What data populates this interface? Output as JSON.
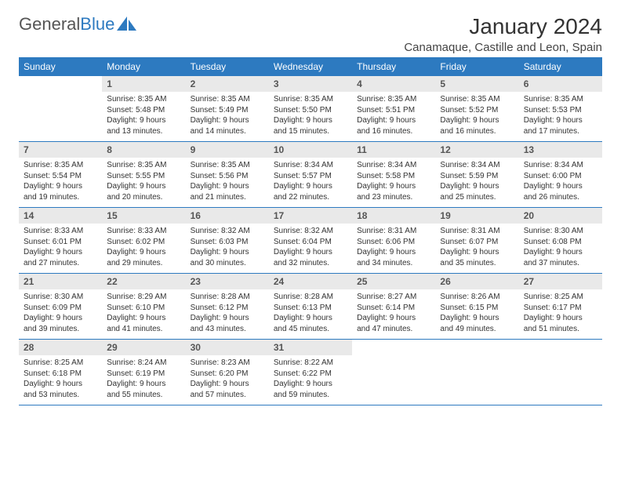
{
  "logo": {
    "part1": "General",
    "part2": "Blue"
  },
  "title": "January 2024",
  "location": "Canamaque, Castille and Leon, Spain",
  "colors": {
    "header_bg": "#2d7ac0",
    "header_text": "#ffffff",
    "daynum_bg": "#e9e9e9",
    "page_bg": "#ffffff",
    "text": "#333333",
    "border": "#2d7ac0"
  },
  "typography": {
    "title_fontsize": 28,
    "location_fontsize": 15,
    "weekday_fontsize": 12,
    "daynum_fontsize": 12,
    "cell_fontsize": 10
  },
  "weekdays": [
    "Sunday",
    "Monday",
    "Tuesday",
    "Wednesday",
    "Thursday",
    "Friday",
    "Saturday"
  ],
  "start_offset": 1,
  "days": [
    {
      "n": "1",
      "sunrise": "8:35 AM",
      "sunset": "5:48 PM",
      "daylight": "9 hours and 13 minutes."
    },
    {
      "n": "2",
      "sunrise": "8:35 AM",
      "sunset": "5:49 PM",
      "daylight": "9 hours and 14 minutes."
    },
    {
      "n": "3",
      "sunrise": "8:35 AM",
      "sunset": "5:50 PM",
      "daylight": "9 hours and 15 minutes."
    },
    {
      "n": "4",
      "sunrise": "8:35 AM",
      "sunset": "5:51 PM",
      "daylight": "9 hours and 16 minutes."
    },
    {
      "n": "5",
      "sunrise": "8:35 AM",
      "sunset": "5:52 PM",
      "daylight": "9 hours and 16 minutes."
    },
    {
      "n": "6",
      "sunrise": "8:35 AM",
      "sunset": "5:53 PM",
      "daylight": "9 hours and 17 minutes."
    },
    {
      "n": "7",
      "sunrise": "8:35 AM",
      "sunset": "5:54 PM",
      "daylight": "9 hours and 19 minutes."
    },
    {
      "n": "8",
      "sunrise": "8:35 AM",
      "sunset": "5:55 PM",
      "daylight": "9 hours and 20 minutes."
    },
    {
      "n": "9",
      "sunrise": "8:35 AM",
      "sunset": "5:56 PM",
      "daylight": "9 hours and 21 minutes."
    },
    {
      "n": "10",
      "sunrise": "8:34 AM",
      "sunset": "5:57 PM",
      "daylight": "9 hours and 22 minutes."
    },
    {
      "n": "11",
      "sunrise": "8:34 AM",
      "sunset": "5:58 PM",
      "daylight": "9 hours and 23 minutes."
    },
    {
      "n": "12",
      "sunrise": "8:34 AM",
      "sunset": "5:59 PM",
      "daylight": "9 hours and 25 minutes."
    },
    {
      "n": "13",
      "sunrise": "8:34 AM",
      "sunset": "6:00 PM",
      "daylight": "9 hours and 26 minutes."
    },
    {
      "n": "14",
      "sunrise": "8:33 AM",
      "sunset": "6:01 PM",
      "daylight": "9 hours and 27 minutes."
    },
    {
      "n": "15",
      "sunrise": "8:33 AM",
      "sunset": "6:02 PM",
      "daylight": "9 hours and 29 minutes."
    },
    {
      "n": "16",
      "sunrise": "8:32 AM",
      "sunset": "6:03 PM",
      "daylight": "9 hours and 30 minutes."
    },
    {
      "n": "17",
      "sunrise": "8:32 AM",
      "sunset": "6:04 PM",
      "daylight": "9 hours and 32 minutes."
    },
    {
      "n": "18",
      "sunrise": "8:31 AM",
      "sunset": "6:06 PM",
      "daylight": "9 hours and 34 minutes."
    },
    {
      "n": "19",
      "sunrise": "8:31 AM",
      "sunset": "6:07 PM",
      "daylight": "9 hours and 35 minutes."
    },
    {
      "n": "20",
      "sunrise": "8:30 AM",
      "sunset": "6:08 PM",
      "daylight": "9 hours and 37 minutes."
    },
    {
      "n": "21",
      "sunrise": "8:30 AM",
      "sunset": "6:09 PM",
      "daylight": "9 hours and 39 minutes."
    },
    {
      "n": "22",
      "sunrise": "8:29 AM",
      "sunset": "6:10 PM",
      "daylight": "9 hours and 41 minutes."
    },
    {
      "n": "23",
      "sunrise": "8:28 AM",
      "sunset": "6:12 PM",
      "daylight": "9 hours and 43 minutes."
    },
    {
      "n": "24",
      "sunrise": "8:28 AM",
      "sunset": "6:13 PM",
      "daylight": "9 hours and 45 minutes."
    },
    {
      "n": "25",
      "sunrise": "8:27 AM",
      "sunset": "6:14 PM",
      "daylight": "9 hours and 47 minutes."
    },
    {
      "n": "26",
      "sunrise": "8:26 AM",
      "sunset": "6:15 PM",
      "daylight": "9 hours and 49 minutes."
    },
    {
      "n": "27",
      "sunrise": "8:25 AM",
      "sunset": "6:17 PM",
      "daylight": "9 hours and 51 minutes."
    },
    {
      "n": "28",
      "sunrise": "8:25 AM",
      "sunset": "6:18 PM",
      "daylight": "9 hours and 53 minutes."
    },
    {
      "n": "29",
      "sunrise": "8:24 AM",
      "sunset": "6:19 PM",
      "daylight": "9 hours and 55 minutes."
    },
    {
      "n": "30",
      "sunrise": "8:23 AM",
      "sunset": "6:20 PM",
      "daylight": "9 hours and 57 minutes."
    },
    {
      "n": "31",
      "sunrise": "8:22 AM",
      "sunset": "6:22 PM",
      "daylight": "9 hours and 59 minutes."
    }
  ],
  "labels": {
    "sunrise": "Sunrise:",
    "sunset": "Sunset:",
    "daylight": "Daylight:"
  }
}
